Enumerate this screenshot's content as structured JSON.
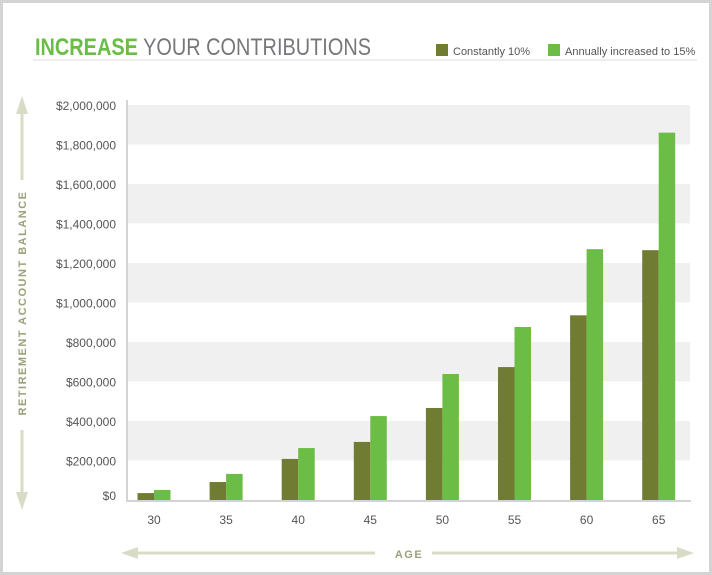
{
  "chart_data": {
    "type": "bar",
    "title_highlight": "INCREASE",
    "title_rest": " YOUR CONTRIBUTIONS",
    "xlabel": "AGE",
    "ylabel": "RETIREMENT ACCOUNT BALANCE",
    "categories": [
      "30",
      "35",
      "40",
      "45",
      "50",
      "55",
      "60",
      "65"
    ],
    "ylim": [
      0,
      2000000
    ],
    "yticks": [
      0,
      200000,
      400000,
      600000,
      800000,
      1000000,
      1200000,
      1400000,
      1600000,
      1800000,
      2000000
    ],
    "ytick_labels": [
      "$0",
      "$200,000",
      "$400,000",
      "$600,000",
      "$800,000",
      "$1,000,000",
      "$1,200,000",
      "$1,400,000",
      "$1,600,000",
      "$1,800,000",
      "$2,000,000"
    ],
    "grid": "alternating horizontal bands",
    "legend_position": "top-right",
    "series": [
      {
        "name": "Constantly 10%",
        "color": "#717c33",
        "values": [
          35000,
          91000,
          208000,
          294000,
          466000,
          673000,
          935000,
          1265000
        ]
      },
      {
        "name": "Annually increased to 15%",
        "color": "#6bbd45",
        "values": [
          51000,
          132000,
          263000,
          425000,
          638000,
          876000,
          1270000,
          1860000
        ]
      }
    ]
  },
  "colors": {
    "title_highlight": "#6bbd45",
    "title_rest": "#77777b",
    "axis_arrow": "#d8dcc6",
    "axis_label": "#9aa17a",
    "band": "#f0f0f0"
  }
}
